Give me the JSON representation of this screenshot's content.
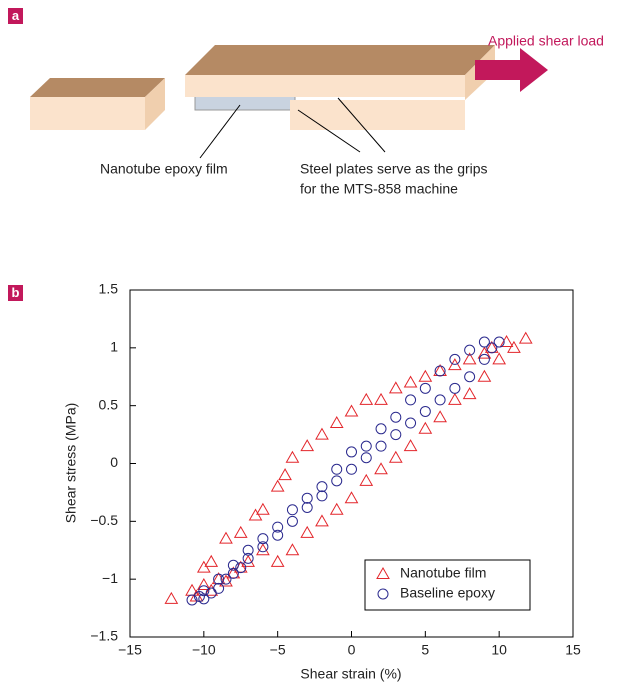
{
  "panel_a": {
    "label": "a",
    "load_label": "Applied shear load",
    "film_label": "Nanotube epoxy film",
    "plates_label": [
      "Steel plates serve as the grips",
      "for the MTS-858 machine"
    ]
  },
  "chart_data": {
    "type": "scatter",
    "panel_label": "b",
    "xlabel": "Shear strain (%)",
    "ylabel": "Shear stress (MPa)",
    "xlim": [
      -15,
      15
    ],
    "ylim": [
      -1.5,
      1.5
    ],
    "xticks": [
      {
        "value": -15,
        "label": "−15"
      },
      {
        "value": -10,
        "label": "−10"
      },
      {
        "value": -5,
        "label": "−5"
      },
      0,
      5,
      10,
      15
    ],
    "yticks": [
      {
        "value": -1.5,
        "label": "−1.5"
      },
      {
        "value": -1,
        "label": "−1"
      },
      {
        "value": -0.5,
        "label": "−0.5"
      },
      0,
      0.5,
      1,
      1.5
    ],
    "legend": "lower right",
    "series": [
      {
        "name": "Nanotube film",
        "color": "#e3262b",
        "marker": "triangle",
        "x": [
          -12.2,
          -10.8,
          -10.5,
          -10,
          -9.5,
          -9,
          -8.5,
          -8,
          -7.5,
          -7,
          -6,
          -5,
          -4,
          -3,
          -2,
          -1,
          0,
          1,
          2,
          3,
          4,
          5,
          6,
          7,
          8,
          9,
          10,
          11,
          11.8,
          10.5,
          9.5,
          9,
          8,
          7,
          6,
          5,
          4,
          3,
          2,
          1,
          0,
          -1,
          -2,
          -3,
          -4,
          -4.5,
          -5,
          -6,
          -6.5,
          -7.5,
          -8.5,
          -9.5,
          -10
        ],
        "y": [
          -1.17,
          -1.1,
          -1.15,
          -1.05,
          -1.1,
          -1.0,
          -1.02,
          -0.95,
          -0.9,
          -0.85,
          -0.75,
          -0.85,
          -0.75,
          -0.6,
          -0.5,
          -0.4,
          -0.3,
          -0.15,
          -0.05,
          0.05,
          0.15,
          0.3,
          0.4,
          0.55,
          0.6,
          0.75,
          0.9,
          1.0,
          1.08,
          1.05,
          1.0,
          0.95,
          0.9,
          0.85,
          0.8,
          0.75,
          0.7,
          0.65,
          0.55,
          0.55,
          0.45,
          0.35,
          0.25,
          0.15,
          0.05,
          -0.1,
          -0.2,
          -0.4,
          -0.45,
          -0.6,
          -0.65,
          -0.85,
          -0.9
        ]
      },
      {
        "name": "Baseline epoxy",
        "color": "#2b2a8e",
        "marker": "circle",
        "x": [
          -10.8,
          -10.3,
          -10,
          -9.5,
          -9,
          -8.5,
          -8,
          -7.5,
          -7,
          -6,
          -5,
          -4,
          -3,
          -2,
          -1,
          0,
          1,
          2,
          3,
          4,
          5,
          6,
          7,
          8,
          9,
          9.5,
          10,
          9,
          8,
          7,
          6,
          5,
          4,
          3,
          2,
          1,
          0,
          -1,
          -2,
          -3,
          -4,
          -5,
          -6,
          -7,
          -8,
          -9,
          -10
        ],
        "y": [
          -1.18,
          -1.15,
          -1.17,
          -1.12,
          -1.08,
          -1.0,
          -0.95,
          -0.9,
          -0.82,
          -0.72,
          -0.62,
          -0.5,
          -0.38,
          -0.28,
          -0.15,
          -0.05,
          0.05,
          0.15,
          0.25,
          0.35,
          0.45,
          0.55,
          0.65,
          0.75,
          0.9,
          1.0,
          1.05,
          1.05,
          0.98,
          0.9,
          0.8,
          0.65,
          0.55,
          0.4,
          0.3,
          0.15,
          0.1,
          -0.05,
          -0.2,
          -0.3,
          -0.4,
          -0.55,
          -0.65,
          -0.75,
          -0.88,
          -1.0,
          -1.1
        ]
      }
    ]
  }
}
